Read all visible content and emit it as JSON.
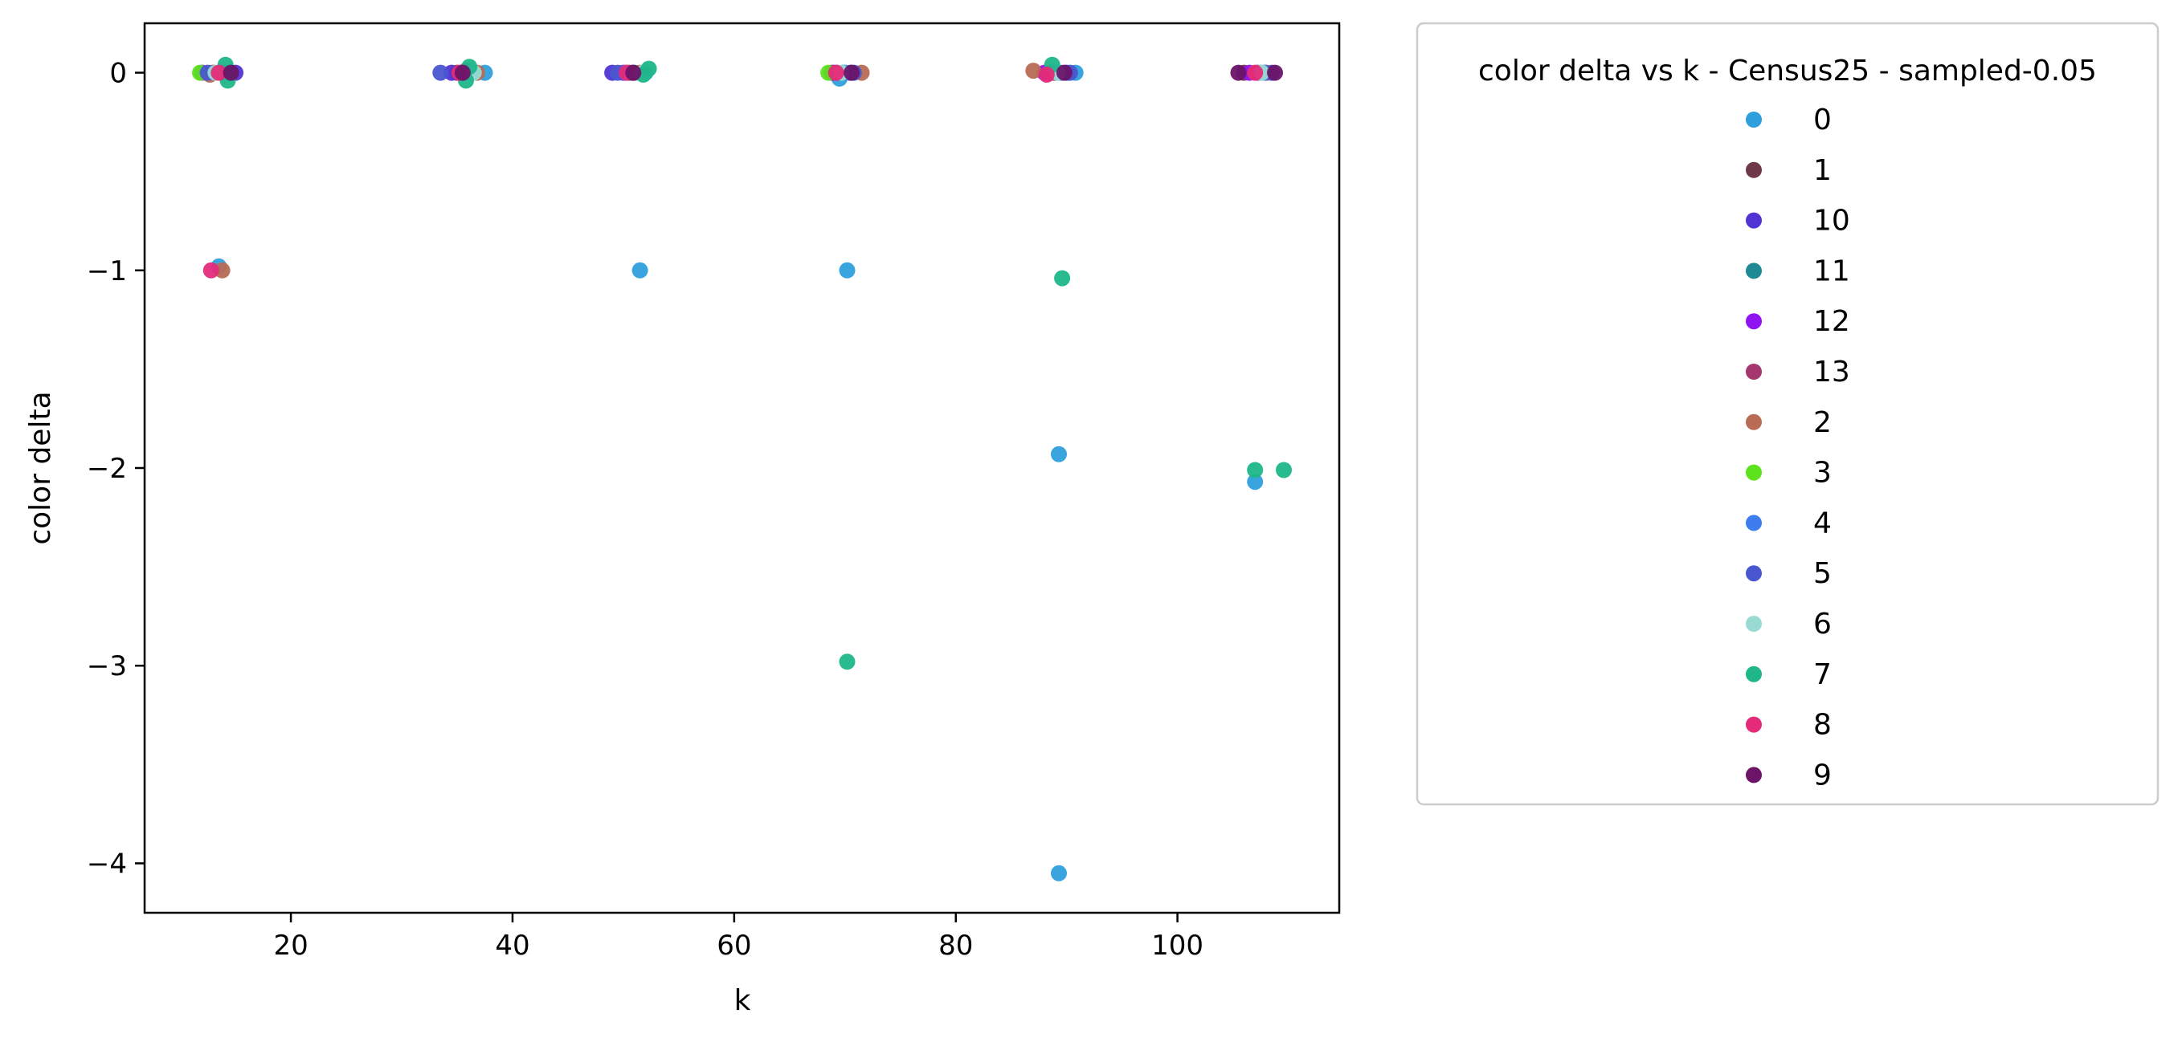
{
  "chart_data": {
    "type": "scatter",
    "xlabel": "k",
    "ylabel": "color delta",
    "xlim": [
      6.8,
      114.6
    ],
    "ylim": [
      -4.25,
      0.25
    ],
    "xticks": [
      20,
      40,
      60,
      80,
      100
    ],
    "yticks": [
      0,
      -1,
      -2,
      -3,
      -4
    ],
    "xtick_labels": [
      "20",
      "40",
      "60",
      "80",
      "100"
    ],
    "ytick_labels": [
      "0",
      "−1",
      "−2",
      "−3",
      "−4"
    ],
    "grid": false,
    "legend": {
      "title": "color delta vs k - Census25 - sampled-0.05",
      "placement": "outside-top-right"
    },
    "series": [
      {
        "name": "0",
        "color": "#2e9fdc",
        "points": [
          [
            13.5,
            -0.98
          ],
          [
            14,
            0
          ],
          [
            37.5,
            0
          ],
          [
            51.5,
            -1
          ],
          [
            52,
            0
          ],
          [
            69.5,
            -0.03
          ],
          [
            70.2,
            -1
          ],
          [
            89.3,
            -1.93
          ],
          [
            89.3,
            -4.05
          ],
          [
            90.8,
            0
          ],
          [
            107,
            -2.07
          ]
        ]
      },
      {
        "name": "1",
        "color": "#6e3a48",
        "points": [
          [
            13,
            0
          ],
          [
            35,
            0
          ],
          [
            50.5,
            0
          ],
          [
            69,
            0
          ],
          [
            88.5,
            0
          ],
          [
            106,
            0
          ]
        ]
      },
      {
        "name": "10",
        "color": "#5134d6",
        "points": [
          [
            15,
            0
          ],
          [
            34.5,
            0
          ],
          [
            49,
            0
          ],
          [
            70.5,
            0
          ],
          [
            90,
            0
          ],
          [
            108,
            0
          ]
        ]
      },
      {
        "name": "11",
        "color": "#208a94",
        "points": [
          [
            14.5,
            0
          ],
          [
            36,
            0
          ],
          [
            51,
            0
          ],
          [
            69.8,
            0
          ],
          [
            89,
            0
          ],
          [
            107.5,
            0
          ]
        ]
      },
      {
        "name": "12",
        "color": "#9013f2",
        "points": [
          [
            12,
            0
          ],
          [
            35.5,
            0
          ],
          [
            50,
            0
          ],
          [
            68.8,
            0
          ],
          [
            88,
            0
          ],
          [
            106.5,
            0
          ]
        ]
      },
      {
        "name": "13",
        "color": "#a4376e",
        "points": [
          [
            13.8,
            0
          ],
          [
            35.8,
            0.01
          ],
          [
            50.8,
            0
          ],
          [
            69.3,
            0
          ],
          [
            88.8,
            0
          ],
          [
            107.2,
            0
          ]
        ]
      },
      {
        "name": "2",
        "color": "#b86c55",
        "points": [
          [
            13.8,
            -1
          ],
          [
            12.7,
            -0.01
          ],
          [
            36.8,
            0
          ],
          [
            51.5,
            0
          ],
          [
            71.5,
            0
          ],
          [
            87,
            0.01
          ],
          [
            108,
            0
          ]
        ]
      },
      {
        "name": "3",
        "color": "#5de31d",
        "points": [
          [
            11.8,
            0
          ],
          [
            68.5,
            0
          ]
        ]
      },
      {
        "name": "4",
        "color": "#3d7df0",
        "points": [
          [
            14.2,
            0
          ],
          [
            36.3,
            0
          ],
          [
            50.2,
            0
          ],
          [
            70,
            0
          ],
          [
            89.5,
            0
          ],
          [
            107.8,
            0
          ]
        ]
      },
      {
        "name": "5",
        "color": "#4a56d0",
        "points": [
          [
            12.5,
            0
          ],
          [
            33.5,
            0
          ],
          [
            49.5,
            0
          ],
          [
            70.8,
            0
          ],
          [
            90.3,
            0
          ],
          [
            108.5,
            0
          ]
        ]
      },
      {
        "name": "6",
        "color": "#99dbd2",
        "points": [
          [
            13.2,
            0
          ],
          [
            36.5,
            0
          ],
          [
            51.8,
            0
          ],
          [
            69.7,
            0
          ],
          [
            89.2,
            0
          ],
          [
            107.6,
            0
          ]
        ]
      },
      {
        "name": "7",
        "color": "#1fb68a",
        "points": [
          [
            14.3,
            -0.04
          ],
          [
            14.1,
            0.04
          ],
          [
            35.8,
            -0.04
          ],
          [
            36.1,
            0.03
          ],
          [
            51.8,
            -0.01
          ],
          [
            52.3,
            0.02
          ],
          [
            70.2,
            -2.98
          ],
          [
            88.7,
            0.04
          ],
          [
            89.6,
            -1.04
          ],
          [
            107,
            -2.01
          ],
          [
            109.6,
            -2.01
          ]
        ]
      },
      {
        "name": "8",
        "color": "#e42b7a",
        "points": [
          [
            12.8,
            -1
          ],
          [
            13.5,
            0
          ],
          [
            35.2,
            0
          ],
          [
            50.3,
            0
          ],
          [
            69.2,
            0
          ],
          [
            88.2,
            -0.01
          ],
          [
            107,
            0
          ]
        ]
      },
      {
        "name": "9",
        "color": "#6b1468",
        "points": [
          [
            14.6,
            0
          ],
          [
            35.5,
            0
          ],
          [
            50.9,
            0
          ],
          [
            70.6,
            0
          ],
          [
            89.8,
            0
          ],
          [
            105.5,
            0
          ],
          [
            108.8,
            0
          ]
        ]
      }
    ]
  }
}
